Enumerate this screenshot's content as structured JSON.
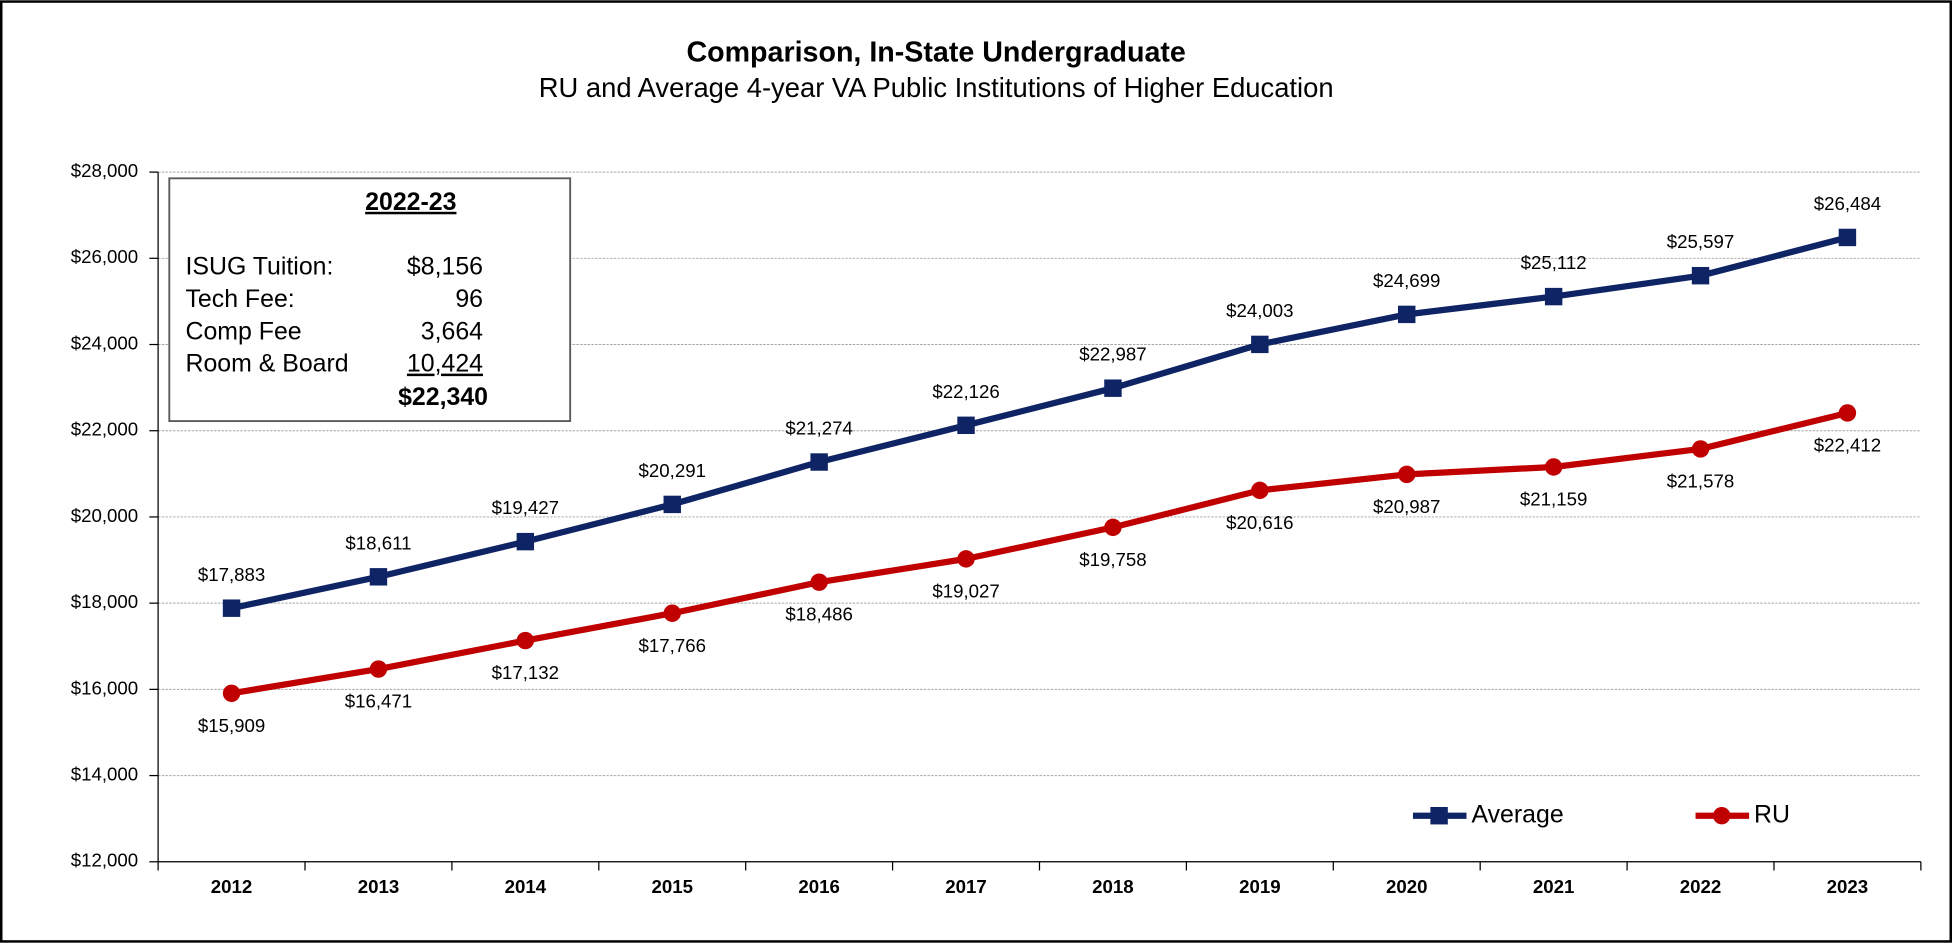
{
  "chart_data": {
    "type": "line",
    "title": "Comparison, In-State Undergraduate",
    "subtitle": "RU and Average 4-year VA Public Institutions of Higher Education",
    "categories": [
      "2012",
      "2013",
      "2014",
      "2015",
      "2016",
      "2017",
      "2018",
      "2019",
      "2020",
      "2021",
      "2022",
      "2023"
    ],
    "series": [
      {
        "name": "Average",
        "color": "#0e2464",
        "marker": "square",
        "values": [
          17883,
          18611,
          19427,
          20291,
          21274,
          22126,
          22987,
          24003,
          24699,
          25112,
          25597,
          26484
        ],
        "value_labels": [
          "$17,883",
          "$18,611",
          "$19,427",
          "$20,291",
          "$21,274",
          "$22,126",
          "$22,987",
          "$24,003",
          "$24,699",
          "$25,112",
          "$25,597",
          "$26,484"
        ]
      },
      {
        "name": "RU",
        "color": "#c00000",
        "marker": "circle",
        "values": [
          15909,
          16471,
          17132,
          17766,
          18486,
          19027,
          19758,
          20616,
          20987,
          21159,
          21578,
          22412
        ],
        "value_labels": [
          "$15,909",
          "$16,471",
          "$17,132",
          "$17,766",
          "$18,486",
          "$19,027",
          "$19,758",
          "$20,616",
          "$20,987",
          "$21,159",
          "$21,578",
          "$22,412"
        ]
      }
    ],
    "ylim": [
      12000,
      28000
    ],
    "yticks": [
      {
        "value": 12000,
        "label": "$12,000"
      },
      {
        "value": 14000,
        "label": "$14,000"
      },
      {
        "value": 16000,
        "label": "$16,000"
      },
      {
        "value": 18000,
        "label": "$18,000"
      },
      {
        "value": 20000,
        "label": "$20,000"
      },
      {
        "value": 22000,
        "label": "$22,000"
      },
      {
        "value": 24000,
        "label": "$24,000"
      },
      {
        "value": 26000,
        "label": "$26,000"
      },
      {
        "value": 28000,
        "label": "$28,000"
      }
    ],
    "grid": true,
    "annotation": {
      "title": "2022-23",
      "rows": [
        [
          "ISUG Tuition:",
          "$8,156"
        ],
        [
          "Tech Fee:",
          "96"
        ],
        [
          "Comp Fee",
          "3,664"
        ],
        [
          "Room & Board",
          "10,424"
        ]
      ],
      "total": "$22,340"
    }
  }
}
